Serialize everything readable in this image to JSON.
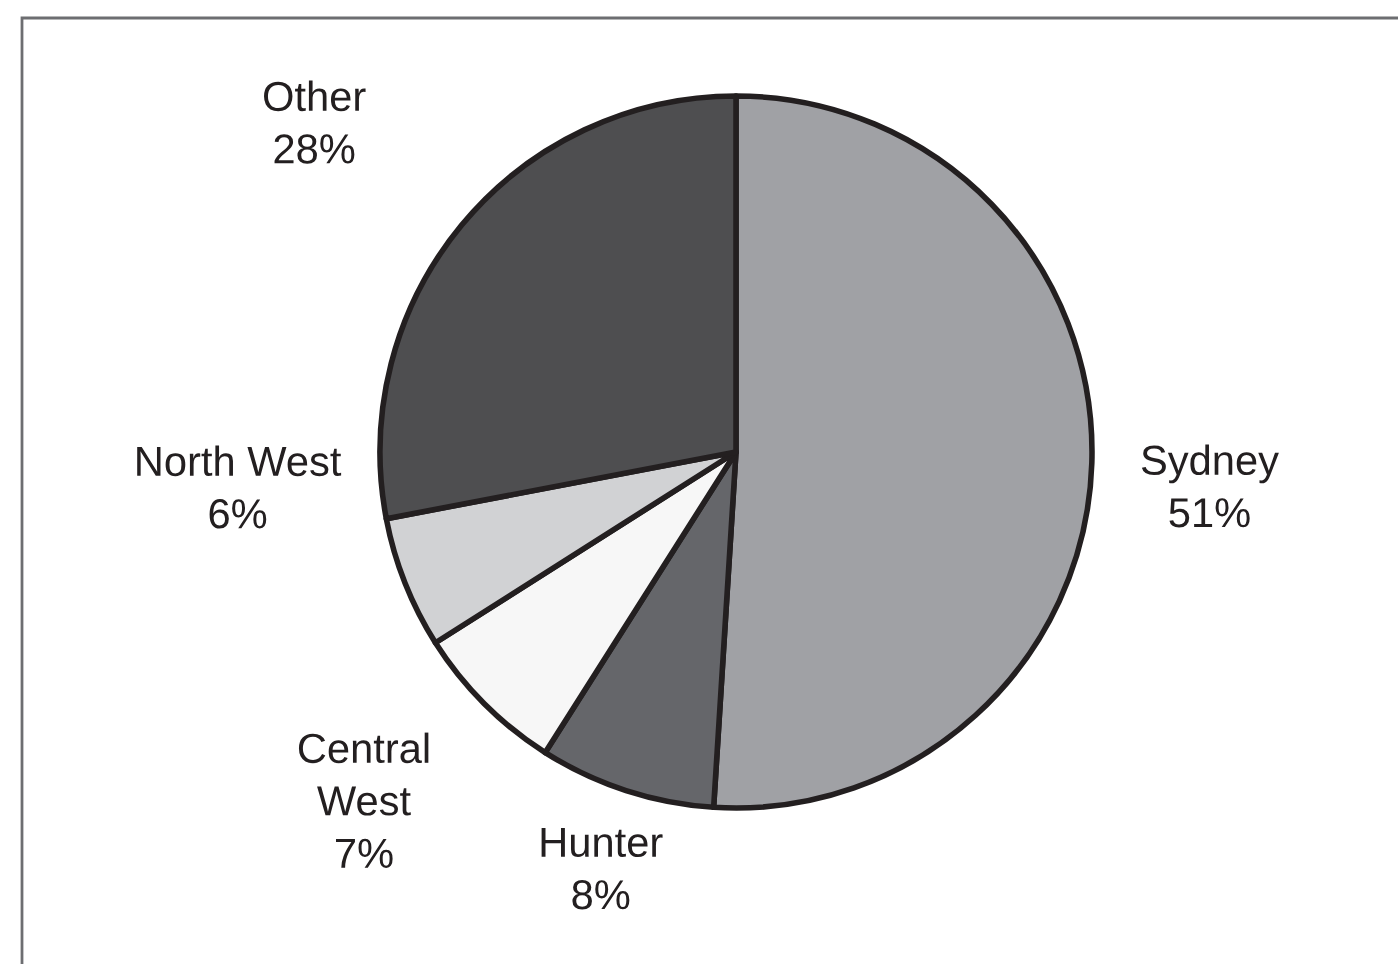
{
  "chart_data": {
    "type": "pie",
    "categories": [
      "Sydney",
      "Hunter",
      "Central West",
      "North West",
      "Other"
    ],
    "values": [
      51,
      8,
      7,
      6,
      28
    ],
    "colors": [
      "#a0a1a5",
      "#65666a",
      "#f7f7f7",
      "#d1d2d4",
      "#4e4e50"
    ],
    "value_labels": [
      "51%",
      "8%",
      "7%",
      "6%",
      "28%"
    ]
  }
}
